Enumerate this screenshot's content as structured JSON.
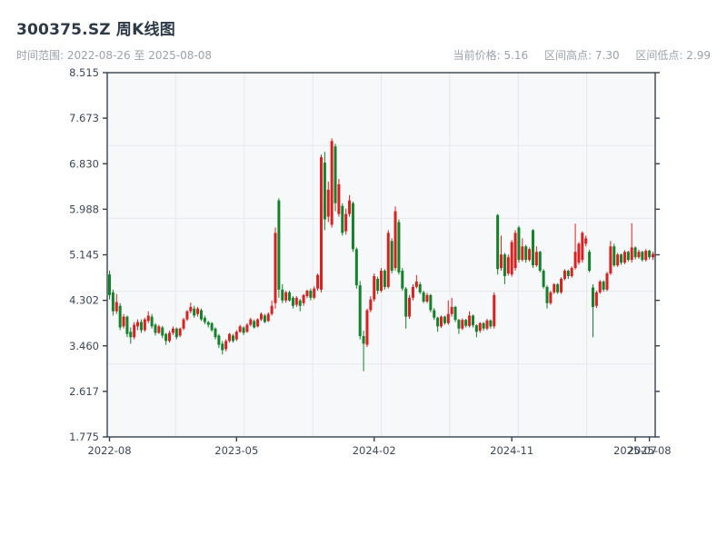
{
  "header": {
    "title": "300375.SZ 周K线图",
    "date_range_label": "时间范围: 2022-08-26 至 2025-08-08",
    "current_price_label": "当前价格: 5.16",
    "range_high_label": "区间高点: 7.30",
    "range_low_label": "区间低点: 2.99"
  },
  "chart_data": {
    "type": "candlestick",
    "title": "300375.SZ 周K线图",
    "frequency": "weekly",
    "start_date": "2022-08-26",
    "end_date": "2025-08-08",
    "current_price": 5.16,
    "range_high": 7.3,
    "range_low": 2.99,
    "ylim": [
      1.775,
      8.515
    ],
    "ytick_labels": [
      "8.515",
      "7.673",
      "6.830",
      "5.988",
      "5.145",
      "4.302",
      "3.460",
      "2.617",
      "1.775"
    ],
    "yticks": [
      8.515,
      7.673,
      6.83,
      5.988,
      5.145,
      4.302,
      3.46,
      2.617,
      1.775
    ],
    "xticks": [
      {
        "label": "2022-08",
        "week": 0
      },
      {
        "label": "2023-05",
        "week": 36
      },
      {
        "label": "2024-02",
        "week": 75
      },
      {
        "label": "2024-11",
        "week": 114
      },
      {
        "label": "2025-07",
        "week": 149
      },
      {
        "label": "2025-08",
        "week": 153
      }
    ],
    "grid": true,
    "legend": "none",
    "colors": {
      "up": "#d92121",
      "down": "#13822a",
      "spine": "#37414f",
      "grid": "#e6e9ec",
      "plot_bg": "#f7f8fa"
    },
    "ohlc": [
      [
        4.78,
        4.85,
        4.32,
        4.4
      ],
      [
        4.45,
        4.5,
        4.02,
        4.1
      ],
      [
        4.1,
        4.42,
        4.05,
        4.27
      ],
      [
        4.2,
        4.25,
        3.75,
        3.8
      ],
      [
        3.82,
        4.05,
        3.78,
        4.0
      ],
      [
        4.0,
        4.02,
        3.62,
        3.68
      ],
      [
        3.72,
        3.8,
        3.5,
        3.62
      ],
      [
        3.62,
        3.9,
        3.58,
        3.85
      ],
      [
        3.82,
        3.95,
        3.75,
        3.9
      ],
      [
        3.9,
        3.95,
        3.7,
        3.75
      ],
      [
        3.75,
        3.98,
        3.72,
        3.95
      ],
      [
        3.92,
        4.1,
        3.88,
        4.02
      ],
      [
        4.0,
        4.05,
        3.78,
        3.82
      ],
      [
        3.85,
        3.88,
        3.65,
        3.7
      ],
      [
        3.7,
        3.85,
        3.68,
        3.82
      ],
      [
        3.8,
        3.83,
        3.6,
        3.65
      ],
      [
        3.68,
        3.7,
        3.48,
        3.55
      ],
      [
        3.55,
        3.74,
        3.52,
        3.7
      ],
      [
        3.7,
        3.82,
        3.66,
        3.78
      ],
      [
        3.78,
        3.8,
        3.58,
        3.62
      ],
      [
        3.65,
        3.8,
        3.62,
        3.78
      ],
      [
        3.78,
        3.98,
        3.75,
        3.95
      ],
      [
        3.95,
        4.12,
        3.92,
        4.1
      ],
      [
        4.1,
        4.26,
        4.06,
        4.18
      ],
      [
        4.15,
        4.2,
        3.98,
        4.02
      ],
      [
        4.05,
        4.18,
        4.0,
        4.15
      ],
      [
        4.12,
        4.15,
        3.92,
        3.95
      ],
      [
        3.98,
        4.02,
        3.86,
        3.9
      ],
      [
        3.9,
        3.92,
        3.8,
        3.85
      ],
      [
        3.88,
        3.9,
        3.72,
        3.75
      ],
      [
        3.78,
        3.8,
        3.58,
        3.62
      ],
      [
        3.65,
        3.68,
        3.42,
        3.48
      ],
      [
        3.5,
        3.55,
        3.3,
        3.38
      ],
      [
        3.4,
        3.58,
        3.36,
        3.55
      ],
      [
        3.55,
        3.7,
        3.52,
        3.68
      ],
      [
        3.65,
        3.68,
        3.52,
        3.55
      ],
      [
        3.58,
        3.75,
        3.55,
        3.72
      ],
      [
        3.72,
        3.85,
        3.7,
        3.82
      ],
      [
        3.8,
        3.82,
        3.66,
        3.7
      ],
      [
        3.72,
        3.88,
        3.7,
        3.85
      ],
      [
        3.85,
        3.98,
        3.82,
        3.95
      ],
      [
        3.92,
        3.95,
        3.78,
        3.8
      ],
      [
        3.82,
        3.97,
        3.8,
        3.95
      ],
      [
        3.95,
        4.08,
        3.92,
        4.05
      ],
      [
        4.02,
        4.05,
        3.88,
        3.9
      ],
      [
        3.92,
        4.08,
        3.9,
        4.05
      ],
      [
        4.05,
        4.3,
        4.02,
        4.2
      ],
      [
        4.25,
        5.65,
        4.15,
        5.55
      ],
      [
        6.15,
        6.19,
        4.35,
        4.5
      ],
      [
        4.5,
        4.6,
        4.25,
        4.3
      ],
      [
        4.3,
        4.48,
        4.26,
        4.45
      ],
      [
        4.45,
        4.48,
        4.28,
        4.3
      ],
      [
        4.35,
        4.38,
        4.15,
        4.2
      ],
      [
        4.22,
        4.38,
        4.18,
        4.35
      ],
      [
        4.3,
        4.33,
        4.1,
        4.2
      ],
      [
        4.25,
        4.42,
        4.2,
        4.4
      ],
      [
        4.38,
        4.5,
        4.34,
        4.48
      ],
      [
        4.48,
        4.52,
        4.3,
        4.35
      ],
      [
        4.35,
        4.56,
        4.32,
        4.52
      ],
      [
        4.52,
        4.8,
        4.48,
        4.77
      ],
      [
        4.5,
        7.0,
        4.45,
        6.95
      ],
      [
        6.85,
        7.05,
        5.6,
        5.8
      ],
      [
        5.85,
        6.5,
        5.75,
        6.35
      ],
      [
        5.7,
        7.3,
        5.65,
        7.25
      ],
      [
        7.15,
        7.2,
        5.95,
        6.1
      ],
      [
        5.9,
        6.55,
        5.85,
        6.45
      ],
      [
        6.05,
        6.1,
        5.5,
        5.55
      ],
      [
        5.58,
        6.0,
        5.52,
        5.9
      ],
      [
        5.9,
        6.25,
        5.85,
        6.15
      ],
      [
        6.1,
        6.13,
        5.2,
        5.25
      ],
      [
        5.25,
        5.28,
        4.52,
        4.58
      ],
      [
        4.58,
        4.66,
        3.58,
        3.64
      ],
      [
        3.64,
        3.74,
        2.99,
        3.5
      ],
      [
        3.48,
        4.15,
        3.44,
        4.12
      ],
      [
        4.12,
        4.38,
        4.08,
        4.32
      ],
      [
        4.32,
        4.8,
        4.28,
        4.75
      ],
      [
        4.7,
        4.74,
        4.42,
        4.48
      ],
      [
        4.48,
        4.9,
        4.45,
        4.85
      ],
      [
        4.85,
        4.88,
        4.5,
        4.55
      ],
      [
        4.55,
        5.6,
        4.52,
        5.55
      ],
      [
        5.4,
        5.45,
        4.8,
        4.85
      ],
      [
        4.9,
        6.04,
        4.85,
        5.95
      ],
      [
        5.75,
        5.8,
        4.78,
        4.82
      ],
      [
        4.85,
        4.9,
        4.48,
        4.52
      ],
      [
        4.52,
        4.55,
        3.78,
        4.0
      ],
      [
        4.0,
        4.4,
        3.96,
        4.35
      ],
      [
        4.35,
        4.6,
        4.3,
        4.55
      ],
      [
        4.55,
        4.77,
        4.52,
        4.65
      ],
      [
        4.6,
        4.64,
        4.42,
        4.45
      ],
      [
        4.45,
        4.48,
        4.25,
        4.28
      ],
      [
        4.28,
        4.44,
        4.25,
        4.4
      ],
      [
        4.4,
        4.42,
        4.08,
        4.12
      ],
      [
        4.12,
        4.16,
        3.94,
        3.98
      ],
      [
        3.98,
        4.0,
        3.72,
        3.82
      ],
      [
        3.82,
        4.02,
        3.79,
        4.0
      ],
      [
        4.0,
        4.02,
        3.85,
        3.88
      ],
      [
        3.88,
        4.3,
        3.85,
        4.05
      ],
      [
        4.05,
        4.35,
        4.0,
        4.18
      ],
      [
        4.18,
        4.2,
        3.9,
        3.94
      ],
      [
        3.94,
        3.96,
        3.68,
        3.78
      ],
      [
        3.78,
        3.97,
        3.75,
        3.94
      ],
      [
        3.94,
        3.96,
        3.8,
        3.83
      ],
      [
        3.83,
        4.1,
        3.8,
        4.02
      ],
      [
        4.02,
        4.04,
        3.8,
        3.84
      ],
      [
        3.84,
        3.86,
        3.62,
        3.72
      ],
      [
        3.74,
        3.9,
        3.7,
        3.88
      ],
      [
        3.88,
        3.9,
        3.74,
        3.78
      ],
      [
        3.78,
        3.96,
        3.75,
        3.93
      ],
      [
        3.93,
        3.95,
        3.78,
        3.82
      ],
      [
        3.82,
        4.45,
        3.78,
        4.4
      ],
      [
        5.88,
        5.9,
        4.78,
        4.88
      ],
      [
        4.9,
        5.5,
        4.85,
        5.15
      ],
      [
        5.15,
        5.18,
        4.6,
        4.75
      ],
      [
        4.8,
        5.15,
        4.76,
        5.1
      ],
      [
        4.78,
        5.42,
        4.74,
        5.38
      ],
      [
        4.9,
        5.6,
        4.85,
        5.55
      ],
      [
        5.65,
        5.68,
        5.0,
        5.05
      ],
      [
        5.05,
        5.45,
        5.02,
        5.3
      ],
      [
        5.3,
        5.33,
        5.0,
        5.05
      ],
      [
        5.05,
        5.28,
        5.02,
        5.25
      ],
      [
        5.6,
        5.62,
        4.9,
        4.95
      ],
      [
        4.95,
        5.3,
        4.92,
        5.2
      ],
      [
        5.2,
        5.22,
        4.82,
        4.85
      ],
      [
        4.85,
        4.88,
        4.52,
        4.55
      ],
      [
        4.55,
        4.58,
        4.15,
        4.25
      ],
      [
        4.25,
        4.48,
        4.22,
        4.45
      ],
      [
        4.45,
        4.62,
        4.42,
        4.6
      ],
      [
        4.6,
        4.62,
        4.42,
        4.45
      ],
      [
        4.45,
        4.73,
        4.42,
        4.7
      ],
      [
        4.7,
        4.88,
        4.67,
        4.85
      ],
      [
        4.85,
        4.87,
        4.7,
        4.75
      ],
      [
        4.75,
        4.93,
        4.72,
        4.9
      ],
      [
        4.9,
        5.72,
        4.87,
        5.2
      ],
      [
        5.0,
        5.38,
        4.96,
        5.35
      ],
      [
        5.05,
        5.58,
        5.0,
        5.55
      ],
      [
        5.35,
        5.5,
        5.3,
        5.45
      ],
      [
        5.2,
        5.24,
        4.82,
        4.85
      ],
      [
        4.54,
        4.6,
        3.62,
        4.18
      ],
      [
        4.2,
        4.48,
        4.16,
        4.45
      ],
      [
        4.45,
        4.68,
        4.42,
        4.65
      ],
      [
        4.65,
        4.67,
        4.46,
        4.5
      ],
      [
        4.5,
        4.83,
        4.47,
        4.8
      ],
      [
        4.8,
        5.4,
        4.77,
        5.3
      ],
      [
        5.3,
        5.35,
        4.92,
        4.95
      ],
      [
        4.95,
        5.18,
        4.92,
        5.15
      ],
      [
        5.15,
        5.17,
        4.96,
        5.0
      ],
      [
        5.0,
        5.23,
        4.97,
        5.2
      ],
      [
        5.2,
        5.22,
        5.02,
        5.05
      ],
      [
        5.05,
        5.73,
        5.0,
        5.28
      ],
      [
        5.28,
        5.3,
        5.06,
        5.1
      ],
      [
        5.1,
        5.24,
        5.07,
        5.2
      ],
      [
        5.2,
        5.22,
        5.02,
        5.05
      ],
      [
        5.05,
        5.25,
        5.02,
        5.22
      ],
      [
        5.22,
        5.24,
        5.06,
        5.1
      ],
      [
        5.1,
        5.2,
        5.05,
        5.16
      ]
    ]
  }
}
